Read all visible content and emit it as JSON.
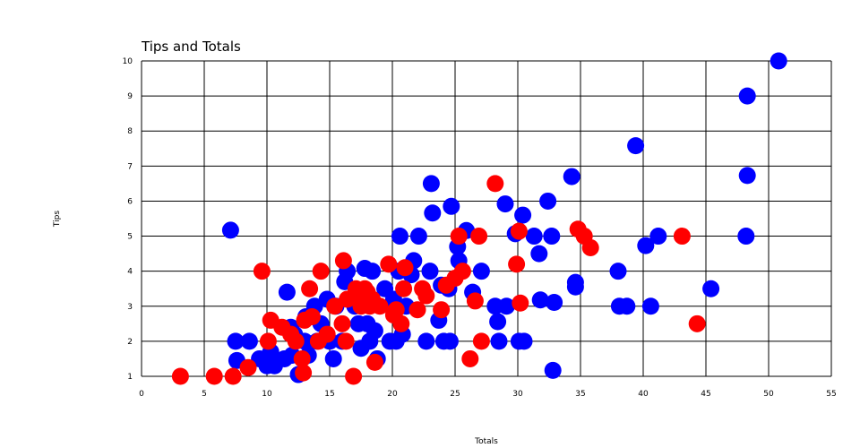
{
  "chart_data": {
    "type": "scatter",
    "title": "Tips and Totals",
    "xlabel": "Totals",
    "ylabel": "Tips",
    "xlim": [
      0,
      55
    ],
    "ylim": [
      1,
      10
    ],
    "xticks": [
      "0",
      "5",
      "10",
      "15",
      "20",
      "25",
      "30",
      "35",
      "40",
      "45",
      "50",
      "55"
    ],
    "yticks": [
      "1",
      "2",
      "3",
      "4",
      "5",
      "6",
      "7",
      "8",
      "9",
      "10"
    ],
    "grid": true,
    "legend": "none",
    "series": [
      {
        "color": "#0000ff",
        "points": [
          [
            7.1,
            5.17
          ],
          [
            7.5,
            2.0
          ],
          [
            7.6,
            1.45
          ],
          [
            8.6,
            2.0
          ],
          [
            9.4,
            1.5
          ],
          [
            9.8,
            1.5
          ],
          [
            10.0,
            1.3
          ],
          [
            10.3,
            1.7
          ],
          [
            10.6,
            1.3
          ],
          [
            11.4,
            1.5
          ],
          [
            11.6,
            3.4
          ],
          [
            11.9,
            2.4
          ],
          [
            12.0,
            1.6
          ],
          [
            12.2,
            2.2
          ],
          [
            12.5,
            1.05
          ],
          [
            13.0,
            2.0
          ],
          [
            13.1,
            2.7
          ],
          [
            13.3,
            1.6
          ],
          [
            13.8,
            3.0
          ],
          [
            14.0,
            2.0
          ],
          [
            14.3,
            2.5
          ],
          [
            14.8,
            3.2
          ],
          [
            15.0,
            2.0
          ],
          [
            15.3,
            1.5
          ],
          [
            15.5,
            3.0
          ],
          [
            16.0,
            2.0
          ],
          [
            16.2,
            3.7
          ],
          [
            16.4,
            4.0
          ],
          [
            16.6,
            3.2
          ],
          [
            17.0,
            3.0
          ],
          [
            17.3,
            2.5
          ],
          [
            17.5,
            1.8
          ],
          [
            17.8,
            4.08
          ],
          [
            18.0,
            2.5
          ],
          [
            18.2,
            2.0
          ],
          [
            18.4,
            4.0
          ],
          [
            18.6,
            2.3
          ],
          [
            18.8,
            1.5
          ],
          [
            19.4,
            3.5
          ],
          [
            19.8,
            2.0
          ],
          [
            20.1,
            3.2
          ],
          [
            20.3,
            2.0
          ],
          [
            20.5,
            4.0
          ],
          [
            20.6,
            5.0
          ],
          [
            20.8,
            2.2
          ],
          [
            21.1,
            3.0
          ],
          [
            21.5,
            3.9
          ],
          [
            21.7,
            4.3
          ],
          [
            22.1,
            5.0
          ],
          [
            22.7,
            2.0
          ],
          [
            23.0,
            4.0
          ],
          [
            23.1,
            6.5
          ],
          [
            23.2,
            5.66
          ],
          [
            23.7,
            2.6
          ],
          [
            23.9,
            3.6
          ],
          [
            24.1,
            2.0
          ],
          [
            24.5,
            3.5
          ],
          [
            24.6,
            2.0
          ],
          [
            24.7,
            5.85
          ],
          [
            25.2,
            4.7
          ],
          [
            25.3,
            4.3
          ],
          [
            25.9,
            5.16
          ],
          [
            26.4,
            3.4
          ],
          [
            27.1,
            4.0
          ],
          [
            28.2,
            3.0
          ],
          [
            28.4,
            2.56
          ],
          [
            28.5,
            2.0
          ],
          [
            29.0,
            5.92
          ],
          [
            29.1,
            3.0
          ],
          [
            29.8,
            5.07
          ],
          [
            30.1,
            2.0
          ],
          [
            30.4,
            5.6
          ],
          [
            30.5,
            2.0
          ],
          [
            31.3,
            5.0
          ],
          [
            31.7,
            4.5
          ],
          [
            31.8,
            3.18
          ],
          [
            32.4,
            6.0
          ],
          [
            32.7,
            5.0
          ],
          [
            32.8,
            1.17
          ],
          [
            32.9,
            3.11
          ],
          [
            34.3,
            6.7
          ],
          [
            34.6,
            3.55
          ],
          [
            34.6,
            3.68
          ],
          [
            38.0,
            4.0
          ],
          [
            38.1,
            3.0
          ],
          [
            38.7,
            3.0
          ],
          [
            39.4,
            7.58
          ],
          [
            40.2,
            4.73
          ],
          [
            40.6,
            3.0
          ],
          [
            41.2,
            5.0
          ],
          [
            45.4,
            3.5
          ],
          [
            48.2,
            5.0
          ],
          [
            48.3,
            6.73
          ],
          [
            48.3,
            9.0
          ],
          [
            50.8,
            10.0
          ]
        ]
      },
      {
        "color": "#ff0000",
        "points": [
          [
            3.1,
            1.0
          ],
          [
            5.8,
            1.0
          ],
          [
            7.3,
            1.0
          ],
          [
            8.5,
            1.25
          ],
          [
            9.6,
            4.0
          ],
          [
            10.1,
            2.0
          ],
          [
            10.3,
            2.6
          ],
          [
            11.2,
            2.4
          ],
          [
            11.9,
            2.2
          ],
          [
            12.3,
            2.0
          ],
          [
            12.8,
            1.5
          ],
          [
            12.9,
            1.1
          ],
          [
            13.0,
            2.6
          ],
          [
            13.4,
            3.5
          ],
          [
            13.6,
            2.7
          ],
          [
            14.1,
            2.0
          ],
          [
            14.3,
            4.0
          ],
          [
            14.8,
            2.2
          ],
          [
            15.4,
            3.0
          ],
          [
            16.0,
            2.5
          ],
          [
            16.1,
            4.3
          ],
          [
            16.3,
            2.0
          ],
          [
            16.4,
            3.2
          ],
          [
            16.9,
            1.0
          ],
          [
            17.1,
            3.5
          ],
          [
            17.3,
            3.2
          ],
          [
            17.5,
            3.0
          ],
          [
            17.8,
            3.5
          ],
          [
            18.0,
            3.4
          ],
          [
            18.2,
            3.0
          ],
          [
            18.4,
            3.2
          ],
          [
            18.6,
            1.4
          ],
          [
            19.0,
            3.0
          ],
          [
            19.7,
            4.2
          ],
          [
            20.1,
            2.75
          ],
          [
            20.3,
            2.9
          ],
          [
            20.7,
            2.5
          ],
          [
            20.9,
            3.5
          ],
          [
            21.0,
            4.1
          ],
          [
            22.0,
            2.9
          ],
          [
            22.4,
            3.5
          ],
          [
            22.7,
            3.3
          ],
          [
            23.9,
            2.9
          ],
          [
            24.3,
            3.6
          ],
          [
            25.0,
            3.8
          ],
          [
            25.3,
            5.0
          ],
          [
            25.6,
            4.0
          ],
          [
            26.2,
            1.5
          ],
          [
            26.6,
            3.15
          ],
          [
            26.9,
            5.0
          ],
          [
            27.1,
            2.0
          ],
          [
            28.2,
            6.5
          ],
          [
            29.9,
            4.2
          ],
          [
            30.1,
            5.14
          ],
          [
            30.2,
            3.09
          ],
          [
            34.8,
            5.2
          ],
          [
            35.3,
            5.0
          ],
          [
            35.8,
            4.67
          ],
          [
            43.1,
            5.0
          ],
          [
            44.3,
            2.5
          ]
        ]
      }
    ]
  }
}
